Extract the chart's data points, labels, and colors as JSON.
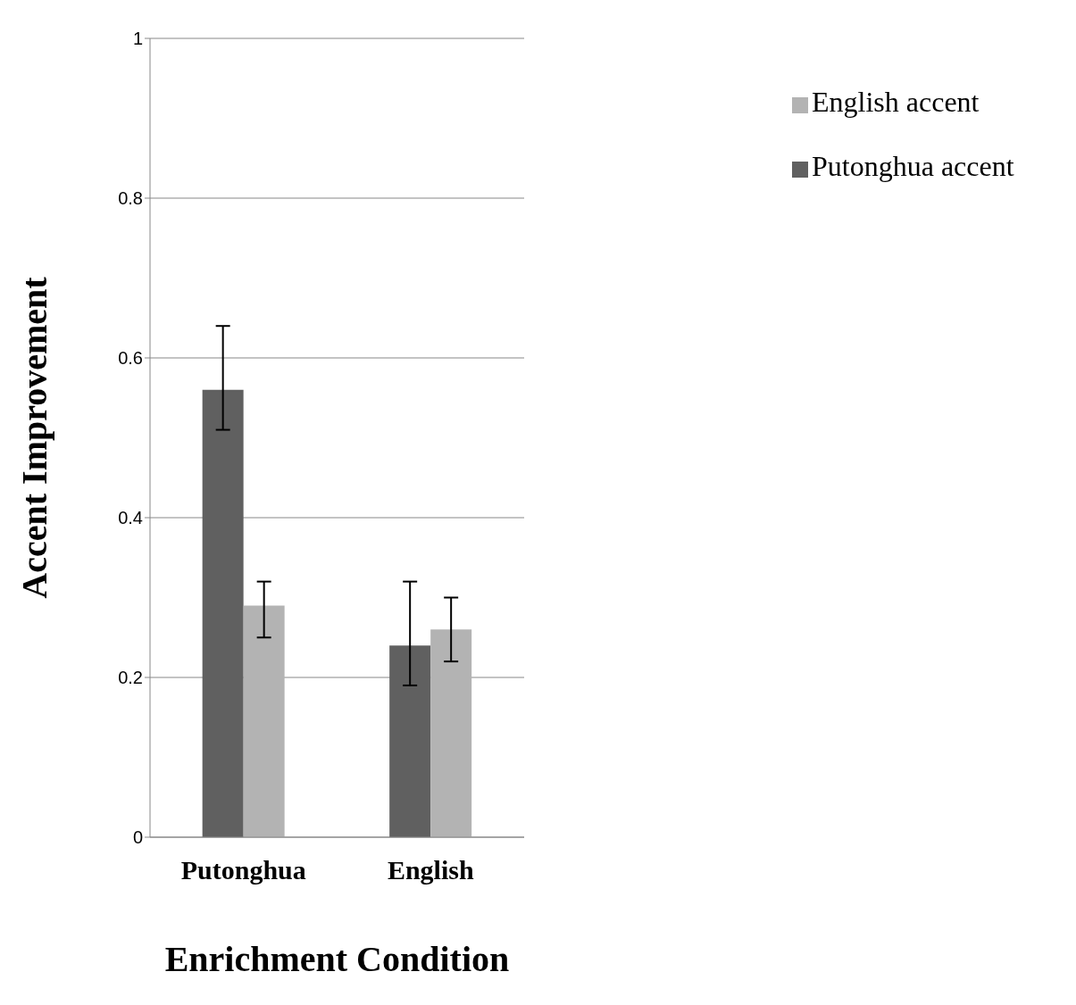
{
  "chart_data": {
    "type": "bar",
    "xlabel": "Enrichment Condition",
    "ylabel": "Accent Improvement",
    "categories": [
      "Putonghua",
      "English"
    ],
    "series": [
      {
        "name": "Putonghua accent",
        "color": "#606060",
        "values": [
          0.56,
          0.24
        ],
        "errors": [
          [
            0.51,
            0.64
          ],
          [
            0.19,
            0.32
          ]
        ]
      },
      {
        "name": "English accent",
        "color": "#b3b3b3",
        "values": [
          0.29,
          0.26
        ],
        "errors": [
          [
            0.25,
            0.32
          ],
          [
            0.22,
            0.3
          ]
        ]
      }
    ],
    "ylim": [
      0,
      1
    ],
    "yticks": [
      0,
      0.2,
      0.4,
      0.6,
      0.8,
      1
    ],
    "grid": "y",
    "legend": "top right"
  }
}
